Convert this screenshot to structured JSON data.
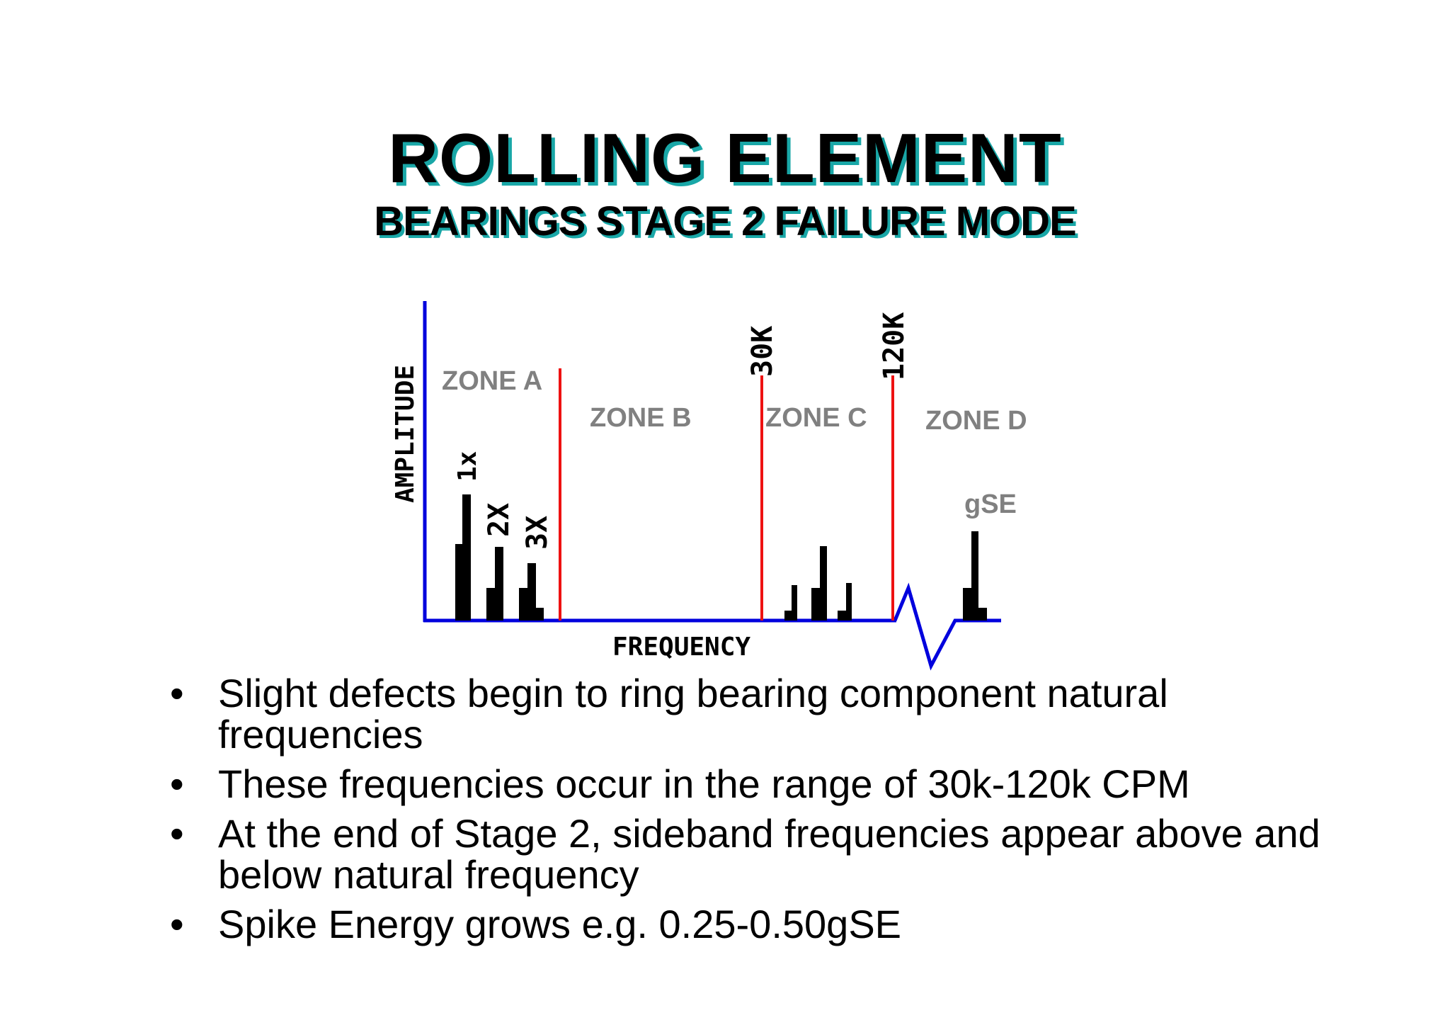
{
  "title": "ROLLING  ELEMENT",
  "subtitle": "BEARINGS STAGE 2  FAILURE  MODE",
  "diagram": {
    "y_axis_label": "AMPLITUDE",
    "x_axis_label": "FREQUENCY",
    "zones": [
      "ZONE A",
      "ZONE B",
      "ZONE C",
      "ZONE D"
    ],
    "boundary_labels": [
      "30K",
      "120K"
    ],
    "harmonic_labels": [
      "1x",
      "2X",
      "3X"
    ],
    "peak_label": "gSE",
    "colors": {
      "axis": "#0000dd",
      "boundary": "#ee1111",
      "peaks": "#000000",
      "zone_text": "#808080"
    }
  },
  "bullets": [
    "Slight defects begin to ring bearing component natural frequencies",
    "These frequencies occur in the range of 30k-120k CPM",
    "At the end of Stage 2, sideband frequencies appear above and below natural frequency",
    "Spike Energy grows e.g. 0.25-0.50gSE"
  ],
  "bullet_glyph": "•"
}
